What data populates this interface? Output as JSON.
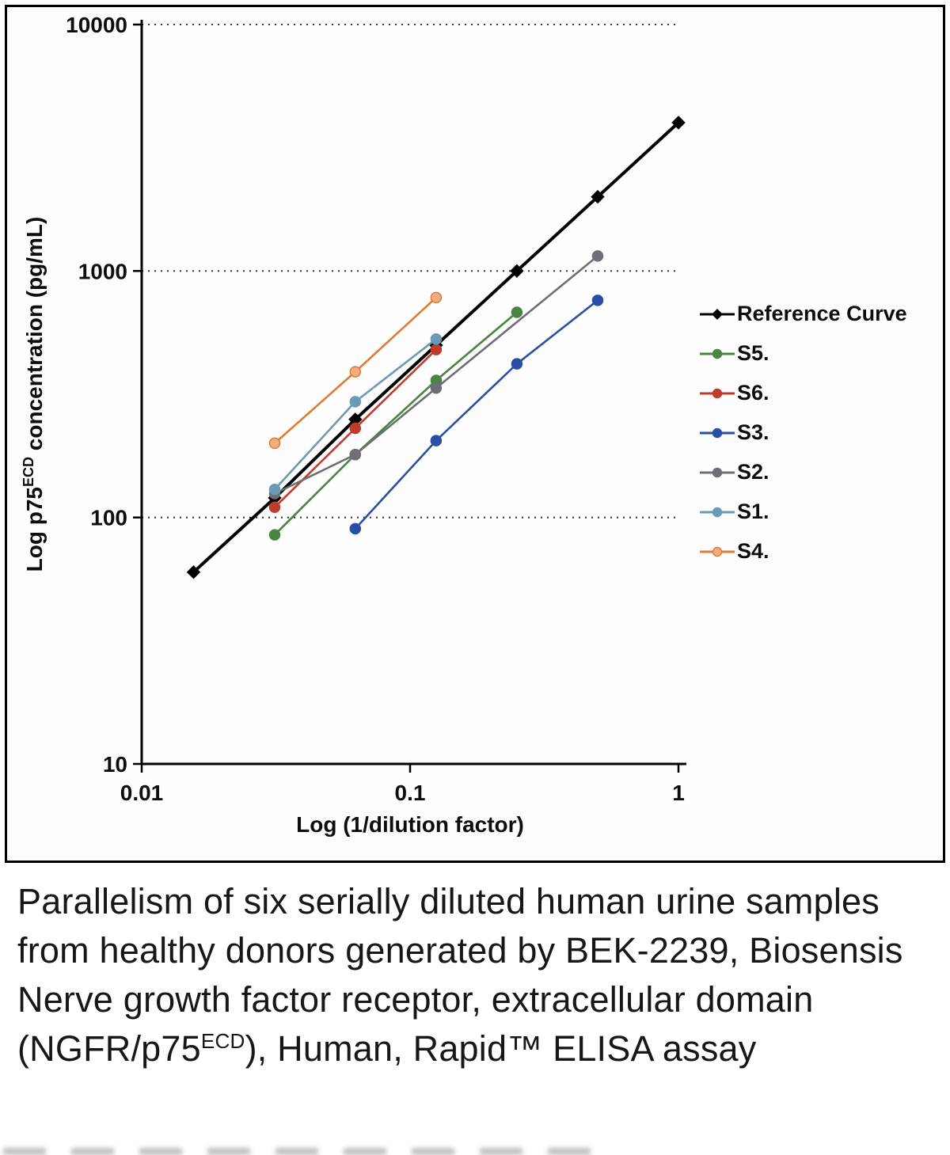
{
  "caption": {
    "text": "Parallelism of six serially diluted human urine samples from healthy donors generated by BEK-2239, Biosensis Nerve growth factor receptor, extracellular domain (NGFR/p75^{ECD}), Human, Rapid™ ELISA assay"
  },
  "chart_data": {
    "type": "line",
    "title": "",
    "xlabel": "Log (1/dilution factor)",
    "ylabel": "Log p75^{ECD} concentration (pg/mL)",
    "xscale": "log",
    "yscale": "log",
    "xlim": [
      0.01,
      1
    ],
    "ylim": [
      10,
      10000
    ],
    "xticks": [
      0.01,
      0.1,
      1
    ],
    "yticks": [
      10,
      100,
      1000,
      10000
    ],
    "gridlines_y": [
      100,
      1000,
      10000
    ],
    "grid_style": "dotted",
    "legend_position": "right",
    "series": [
      {
        "name": "Reference Curve",
        "role": "reference",
        "color": "#000000",
        "marker": "diamond",
        "x": [
          0.0156,
          0.0313,
          0.0625,
          0.125,
          0.25,
          0.5,
          1
        ],
        "y": [
          60,
          120,
          250,
          500,
          1000,
          2000,
          4000
        ]
      },
      {
        "name": "S5.",
        "color": "#4a8442",
        "marker": "circle",
        "x": [
          0.0313,
          0.0625,
          0.125,
          0.25
        ],
        "y": [
          85,
          180,
          360,
          680
        ]
      },
      {
        "name": "S6.",
        "color": "#bf3b2b",
        "marker": "circle",
        "x": [
          0.0313,
          0.0625,
          0.125
        ],
        "y": [
          110,
          230,
          480
        ]
      },
      {
        "name": "S3.",
        "color": "#2a4da6",
        "marker": "circle",
        "x": [
          0.0625,
          0.125,
          0.25,
          0.5
        ],
        "y": [
          90,
          205,
          420,
          760
        ]
      },
      {
        "name": "S2.",
        "color": "#6e6e76",
        "marker": "circle",
        "x": [
          0.0313,
          0.0625,
          0.125,
          0.5
        ],
        "y": [
          125,
          180,
          335,
          1150
        ]
      },
      {
        "name": "S1.",
        "color": "#6b9ab5",
        "marker": "circle",
        "x": [
          0.0313,
          0.0625,
          0.125
        ],
        "y": [
          130,
          295,
          530
        ]
      },
      {
        "name": "S4.",
        "color": "#e07b35",
        "marker_fill": "#f2ad7e",
        "marker": "circle",
        "x": [
          0.0313,
          0.0625,
          0.125
        ],
        "y": [
          200,
          390,
          780
        ]
      }
    ]
  }
}
